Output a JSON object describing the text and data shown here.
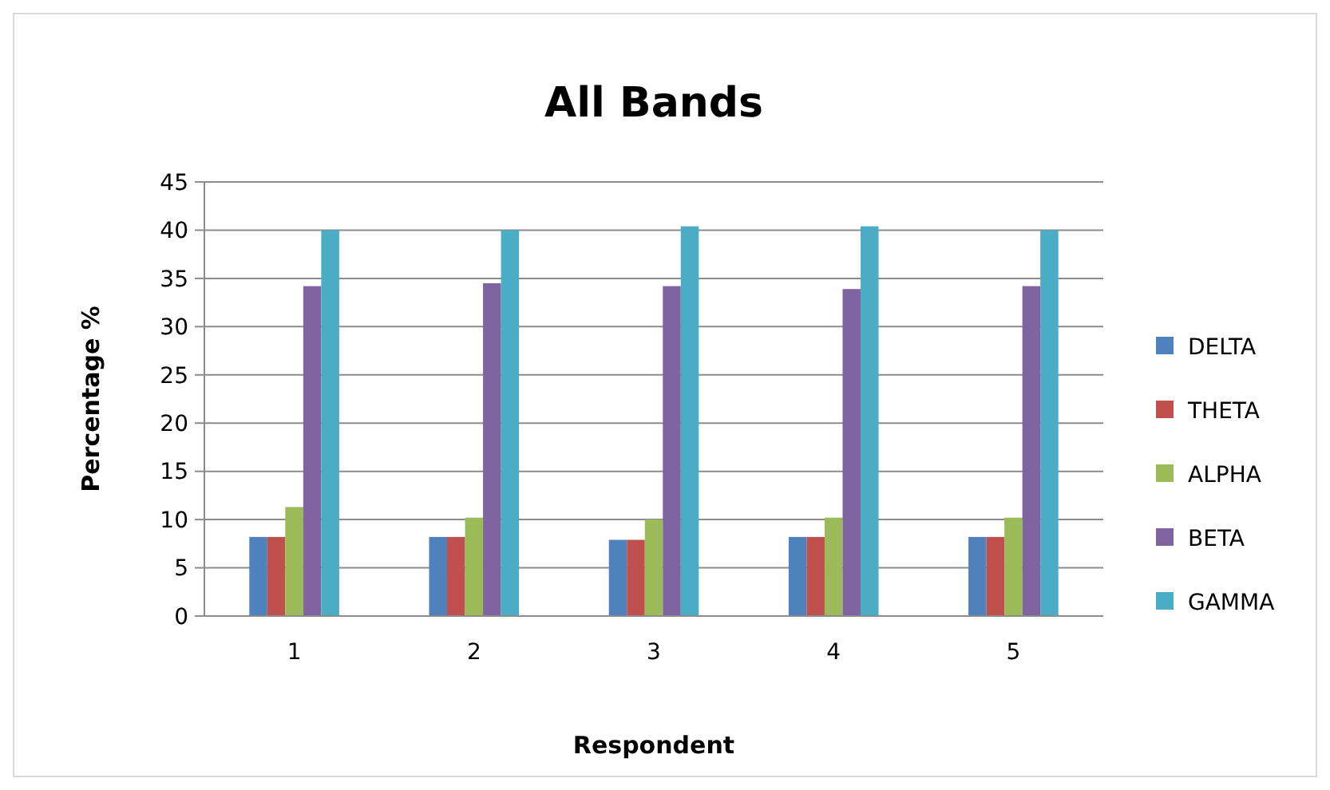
{
  "chart_data": {
    "type": "bar",
    "title": "All Bands",
    "xlabel": "Respondent",
    "ylabel": "Percentage %",
    "categories": [
      "1",
      "2",
      "3",
      "4",
      "5"
    ],
    "series": [
      {
        "name": "DELTA",
        "color": "#4f81bd",
        "values": [
          8.2,
          8.2,
          7.9,
          8.2,
          8.2
        ]
      },
      {
        "name": "THETA",
        "color": "#c0504d",
        "values": [
          8.2,
          8.2,
          7.9,
          8.2,
          8.2
        ]
      },
      {
        "name": "ALPHA",
        "color": "#9bbb59",
        "values": [
          11.3,
          10.2,
          10,
          10.2,
          10.2
        ]
      },
      {
        "name": "BETA",
        "color": "#8064a2",
        "values": [
          34.2,
          34.5,
          34.2,
          33.9,
          34.2
        ]
      },
      {
        "name": "GAMMA",
        "color": "#4bacc6",
        "values": [
          40,
          40,
          40.4,
          40.4,
          40
        ]
      }
    ],
    "ylim": [
      0,
      45
    ],
    "yticks": [
      0,
      5,
      10,
      15,
      20,
      25,
      30,
      35,
      40,
      45
    ],
    "grid": "y",
    "legend": "right"
  }
}
